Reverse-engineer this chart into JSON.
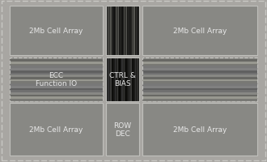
{
  "figsize": [
    3.3,
    2.01
  ],
  "dpi": 100,
  "bg_outer": "#a8a6a2",
  "bg_cell_array": "#888884",
  "bg_ctrl": "#4a4a46",
  "text_color": "#e8e8e8",
  "outer_border_color": "#c8c8c4",
  "cell_border_color": "#c0c0bc",
  "blocks": [
    {
      "label": "2Mb Cell Array",
      "row": 0,
      "col": 0
    },
    {
      "label": "2Mb Cell Array",
      "row": 0,
      "col": 2
    },
    {
      "label": "ECC\nFunction IO",
      "row": 1,
      "col": 0
    },
    {
      "label": "CTRL &\nBIAS",
      "row": 1,
      "col": 1
    },
    {
      "label": "2Mb Cell Array",
      "row": 2,
      "col": 0
    },
    {
      "label": "ROW\nDEC",
      "row": 2,
      "col": 1
    },
    {
      "label": "2Mb Cell Array",
      "row": 2,
      "col": 2
    }
  ],
  "n_stripes": 30,
  "stripe_colors_dark": [
    "#111110",
    "#222220",
    "#444440",
    "#333330",
    "#555550",
    "#1a1a18",
    "#2a2a28"
  ],
  "stripe_colors_ctrl": [
    "#0a0a08",
    "#1a1a18",
    "#303030",
    "#222220",
    "#3a3a38",
    "#121210"
  ],
  "ecc_stripe_colors": [
    "#787874",
    "#989890",
    "#686864",
    "#888884",
    "#707070",
    "#606060",
    "#808080",
    "#787878"
  ],
  "n_ecc_stripes": 20,
  "font_size": 6.5
}
